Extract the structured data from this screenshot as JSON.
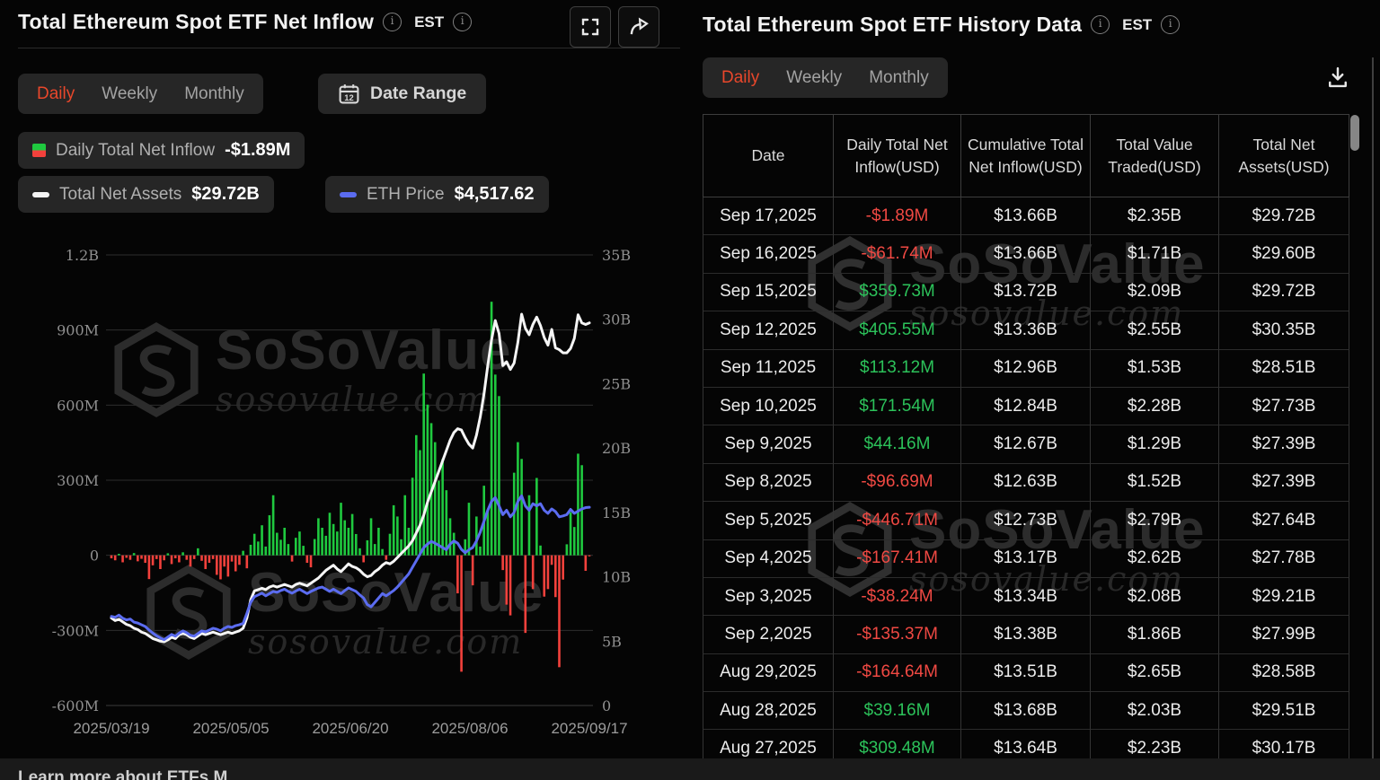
{
  "left_panel": {
    "title": "Total Ethereum Spot ETF Net Inflow",
    "timezone": "EST",
    "tabs": [
      {
        "label": "Daily",
        "active": true
      },
      {
        "label": "Weekly",
        "active": false
      },
      {
        "label": "Monthly",
        "active": false
      }
    ],
    "date_range_label": "Date Range",
    "calendar_day": "12",
    "legend": [
      {
        "label": "Daily Total Net Inflow",
        "value": "-$1.89M",
        "icon": "split-green-red"
      },
      {
        "label": "Total Net Assets",
        "value": "$29.72B",
        "icon": "white-dash"
      },
      {
        "label": "ETH Price",
        "value": "$4,517.62",
        "icon": "blue-dash"
      }
    ]
  },
  "chart_data": {
    "type": "mixed-bar-line",
    "x_tick_labels": [
      "2025/03/19",
      "2025/05/05",
      "2025/06/20",
      "2025/08/06",
      "2025/09/17"
    ],
    "left_axis": {
      "ticks": [
        "1.2B",
        "900M",
        "600M",
        "300M",
        "0",
        "-300M",
        "-600M"
      ],
      "max_M": 1200,
      "min_M": -600
    },
    "right_axis": {
      "ticks": [
        "35B",
        "30B",
        "25B",
        "20B",
        "15B",
        "10B",
        "5B",
        "0"
      ],
      "max_B": 35,
      "min_B": 0
    },
    "series": [
      {
        "name": "Daily Total Net Inflow",
        "type": "bar",
        "unit": "USD millions",
        "values": [
          -12,
          -20,
          6,
          -28,
          -10,
          -18,
          9,
          -24,
          -14,
          -30,
          -95,
          -40,
          -15,
          -55,
          -20,
          8,
          -35,
          -12,
          -28,
          12,
          -18,
          -45,
          -15,
          28,
          -22,
          -55,
          -30,
          -15,
          -78,
          -96,
          -45,
          -85,
          -25,
          -64,
          -38,
          18,
          -52,
          42,
          86,
          55,
          120,
          35,
          160,
          240,
          90,
          62,
          110,
          45,
          -25,
          70,
          95,
          38,
          -30,
          -48,
          65,
          148,
          110,
          78,
          170,
          125,
          95,
          210,
          140,
          110,
          165,
          85,
          28,
          -28,
          60,
          148,
          45,
          110,
          25,
          -18,
          86,
          200,
          155,
          64,
          240,
          110,
          310,
          480,
          420,
          726,
          602,
          528,
          452,
          298,
          385,
          260,
          148,
          90,
          -152,
          -465,
          64,
          210,
          -120,
          155,
          35,
          278,
          180,
          1013,
          722,
          636,
          -59,
          -197,
          -240,
          330,
          452,
          385,
          -310,
          240,
          -135,
          309,
          39,
          -165,
          -135,
          -38,
          -167,
          -447,
          -97,
          44,
          172,
          113,
          406,
          360,
          -62,
          -2
        ]
      },
      {
        "name": "Total Net Assets",
        "type": "line",
        "unit": "USD billions",
        "values": [
          6.8,
          6.6,
          6.7,
          6.5,
          6.3,
          6.2,
          6.0,
          5.9,
          5.7,
          5.6,
          5.4,
          5.2,
          5.1,
          5.0,
          4.95,
          5.1,
          5.3,
          5.2,
          5.5,
          5.6,
          5.5,
          5.3,
          5.2,
          5.4,
          5.6,
          5.5,
          5.6,
          5.7,
          5.6,
          5.5,
          5.6,
          5.7,
          5.6,
          5.7,
          5.8,
          6.0,
          6.8,
          8.2,
          8.9,
          9.0,
          9.1,
          9.0,
          9.2,
          9.3,
          9.2,
          9.3,
          9.4,
          9.3,
          9.2,
          9.4,
          9.5,
          9.4,
          9.3,
          9.5,
          9.7,
          9.9,
          10.2,
          10.5,
          10.7,
          10.9,
          10.6,
          10.4,
          10.7,
          11.0,
          10.8,
          10.7,
          10.5,
          10.2,
          10.0,
          10.1,
          10.4,
          10.6,
          10.9,
          11.1,
          11.0,
          11.2,
          11.5,
          11.8,
          12.1,
          12.4,
          12.8,
          13.4,
          14.0,
          14.8,
          15.8,
          16.6,
          17.4,
          18.2,
          19.0,
          19.8,
          20.6,
          21.2,
          21.5,
          21.4,
          20.8,
          20.3,
          20.0,
          21.0,
          22.4,
          24.2,
          26.4,
          28.4,
          29.9,
          28.9,
          26.4,
          26.7,
          26.1,
          26.6,
          28.2,
          30.4,
          29.3,
          28.8,
          29.6,
          30.17,
          29.51,
          28.58,
          27.99,
          29.21,
          27.78,
          27.64,
          27.39,
          27.39,
          27.73,
          28.51,
          30.35,
          29.72,
          29.6,
          29.72
        ]
      },
      {
        "name": "ETH Price",
        "type": "line",
        "unit": "USD",
        "hidden_axis_max": 10270,
        "values": [
          2030,
          2010,
          2060,
          1990,
          1950,
          1970,
          1900,
          1880,
          1840,
          1800,
          1720,
          1650,
          1590,
          1540,
          1500,
          1560,
          1620,
          1580,
          1650,
          1700,
          1660,
          1600,
          1580,
          1640,
          1700,
          1680,
          1720,
          1760,
          1740,
          1700,
          1760,
          1800,
          1780,
          1820,
          1840,
          1870,
          2100,
          2350,
          2480,
          2520,
          2560,
          2500,
          2550,
          2600,
          2580,
          2620,
          2650,
          2600,
          2560,
          2610,
          2650,
          2600,
          2550,
          2600,
          2640,
          2680,
          2700,
          2650,
          2600,
          2650,
          2600,
          2550,
          2620,
          2680,
          2640,
          2600,
          2520,
          2450,
          2300,
          2250,
          2350,
          2450,
          2550,
          2500,
          2560,
          2620,
          2700,
          2800,
          2900,
          3000,
          3150,
          3300,
          3450,
          3600,
          3680,
          3740,
          3700,
          3650,
          3600,
          3550,
          3680,
          3750,
          3700,
          3560,
          3480,
          3550,
          3600,
          3750,
          3950,
          4200,
          4450,
          4650,
          4740,
          4550,
          4350,
          4450,
          4300,
          4400,
          4650,
          4780,
          4550,
          4450,
          4600,
          4550,
          4600,
          4450,
          4380,
          4480,
          4420,
          4300,
          4320,
          4350,
          4470,
          4380,
          4430,
          4480,
          4510,
          4517.62
        ]
      }
    ]
  },
  "right_panel": {
    "title": "Total Ethereum Spot ETF History Data",
    "timezone": "EST",
    "tabs": [
      {
        "label": "Daily",
        "active": true
      },
      {
        "label": "Weekly",
        "active": false
      },
      {
        "label": "Monthly",
        "active": false
      }
    ],
    "columns": [
      "Date",
      "Daily Total Net Inflow(USD)",
      "Cumulative Total Net Inflow(USD)",
      "Total Value Traded(USD)",
      "Total Net Assets(USD)"
    ],
    "rows": [
      {
        "date": "Sep 17,2025",
        "daily_inflow": "-$1.89M",
        "cumulative_inflow": "$13.66B",
        "value_traded": "$2.35B",
        "net_assets": "$29.72B"
      },
      {
        "date": "Sep 16,2025",
        "daily_inflow": "-$61.74M",
        "cumulative_inflow": "$13.66B",
        "value_traded": "$1.71B",
        "net_assets": "$29.60B"
      },
      {
        "date": "Sep 15,2025",
        "daily_inflow": "$359.73M",
        "cumulative_inflow": "$13.72B",
        "value_traded": "$2.09B",
        "net_assets": "$29.72B"
      },
      {
        "date": "Sep 12,2025",
        "daily_inflow": "$405.55M",
        "cumulative_inflow": "$13.36B",
        "value_traded": "$2.55B",
        "net_assets": "$30.35B"
      },
      {
        "date": "Sep 11,2025",
        "daily_inflow": "$113.12M",
        "cumulative_inflow": "$12.96B",
        "value_traded": "$1.53B",
        "net_assets": "$28.51B"
      },
      {
        "date": "Sep 10,2025",
        "daily_inflow": "$171.54M",
        "cumulative_inflow": "$12.84B",
        "value_traded": "$2.28B",
        "net_assets": "$27.73B"
      },
      {
        "date": "Sep 9,2025",
        "daily_inflow": "$44.16M",
        "cumulative_inflow": "$12.67B",
        "value_traded": "$1.29B",
        "net_assets": "$27.39B"
      },
      {
        "date": "Sep 8,2025",
        "daily_inflow": "-$96.69M",
        "cumulative_inflow": "$12.63B",
        "value_traded": "$1.52B",
        "net_assets": "$27.39B"
      },
      {
        "date": "Sep 5,2025",
        "daily_inflow": "-$446.71M",
        "cumulative_inflow": "$12.73B",
        "value_traded": "$2.79B",
        "net_assets": "$27.64B"
      },
      {
        "date": "Sep 4,2025",
        "daily_inflow": "-$167.41M",
        "cumulative_inflow": "$13.17B",
        "value_traded": "$2.62B",
        "net_assets": "$27.78B"
      },
      {
        "date": "Sep 3,2025",
        "daily_inflow": "-$38.24M",
        "cumulative_inflow": "$13.34B",
        "value_traded": "$2.08B",
        "net_assets": "$29.21B"
      },
      {
        "date": "Sep 2,2025",
        "daily_inflow": "-$135.37M",
        "cumulative_inflow": "$13.38B",
        "value_traded": "$1.86B",
        "net_assets": "$27.99B"
      },
      {
        "date": "Aug 29,2025",
        "daily_inflow": "-$164.64M",
        "cumulative_inflow": "$13.51B",
        "value_traded": "$2.65B",
        "net_assets": "$28.58B"
      },
      {
        "date": "Aug 28,2025",
        "daily_inflow": "$39.16M",
        "cumulative_inflow": "$13.68B",
        "value_traded": "$2.03B",
        "net_assets": "$29.51B"
      },
      {
        "date": "Aug 27,2025",
        "daily_inflow": "$309.48M",
        "cumulative_inflow": "$13.64B",
        "value_traded": "$2.23B",
        "net_assets": "$30.17B"
      }
    ]
  },
  "watermark": {
    "brand": "SoSoValue",
    "domain": "sosovalue.com"
  },
  "footer": {
    "text": "Learn more about ETFs  M"
  },
  "colors": {
    "accent_orange": "#e8472b",
    "bar_green": "#1fc93f",
    "bar_red": "#f3413c",
    "line_white": "#f5f5f5",
    "line_blue": "#5b6cf0",
    "table_green": "#2cc25a",
    "table_red": "#f04943",
    "grid": "#2d2d2d",
    "axis_text": "#909090"
  }
}
